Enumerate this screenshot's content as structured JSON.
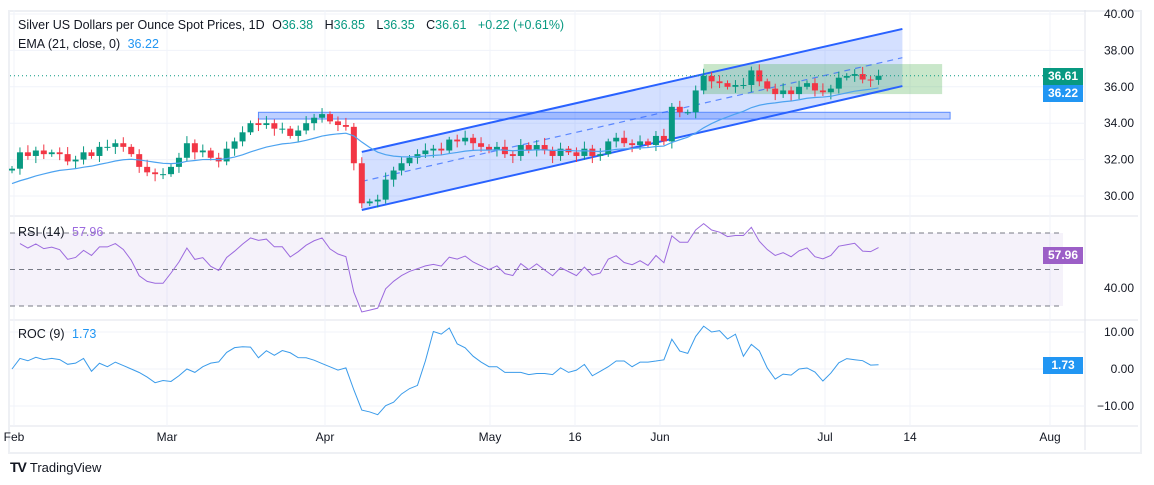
{
  "header": {
    "title": "Silver US Dollars per Ounce Spot Prices, 1D",
    "open_label": "O",
    "open": "36.38",
    "high_label": "H",
    "high": "36.85",
    "low_label": "L",
    "low": "36.35",
    "close_label": "C",
    "close": "36.61",
    "change": "+0.22 (+0.61%)"
  },
  "ema_legend": {
    "label": "EMA (21, close, 0)",
    "value": "36.22"
  },
  "rsi_legend": {
    "label": "RSI (14)",
    "value": "57.96"
  },
  "roc_legend": {
    "label": "ROC (9)",
    "value": "1.73"
  },
  "tags": {
    "price": "36.61",
    "ema": "36.22",
    "rsi": "57.96",
    "roc": "1.73"
  },
  "branding": {
    "name": "TradingView"
  },
  "colors": {
    "up": "#089981",
    "down": "#F23645",
    "ema": "#4DA3F0",
    "rsi": "#9C6ADE",
    "roc": "#3A9BEA",
    "channel": "#2962FF"
  },
  "chart_data": {
    "type": "candlestick",
    "title": "Silver US Dollars per Ounce Spot Prices, 1D",
    "price_axis": {
      "ticks": [
        "40.00",
        "38.00",
        "36.00",
        "34.00",
        "32.00",
        "30.00"
      ],
      "range": [
        29,
        40
      ]
    },
    "rsi_axis": {
      "ticks": [
        "40.00"
      ],
      "levels": [
        70,
        50,
        30
      ]
    },
    "roc_axis": {
      "ticks": [
        "10.00",
        "0.00",
        "-10.00"
      ],
      "range": [
        -12,
        12
      ]
    },
    "time_labels": [
      "Feb",
      "Mar",
      "Apr",
      "May",
      "16",
      "Jun",
      "Jul",
      "14",
      "Aug"
    ],
    "closes": [
      31.5,
      32.4,
      32.2,
      32.5,
      32.3,
      32.4,
      32.3,
      31.9,
      32.0,
      32.4,
      32.2,
      32.7,
      32.7,
      32.9,
      32.7,
      32.3,
      31.6,
      31.3,
      31.2,
      31.2,
      31.6,
      32.1,
      32.9,
      32.4,
      32.5,
      32.1,
      31.9,
      32.6,
      33.0,
      33.5,
      34.0,
      33.9,
      34.0,
      33.7,
      33.7,
      33.3,
      33.6,
      34.0,
      34.3,
      34.5,
      34.1,
      33.9,
      33.8,
      31.8,
      29.6,
      29.7,
      29.8,
      30.9,
      31.4,
      31.8,
      32.1,
      32.3,
      32.5,
      32.6,
      32.5,
      33.1,
      33.0,
      33.2,
      32.9,
      32.7,
      32.5,
      32.7,
      32.3,
      32.2,
      32.8,
      32.5,
      32.8,
      32.5,
      32.2,
      32.6,
      32.4,
      32.2,
      32.6,
      32.2,
      32.3,
      33.0,
      33.2,
      32.9,
      32.8,
      33.0,
      32.8,
      33.3,
      33.0,
      34.9,
      34.6,
      34.6,
      35.8,
      36.6,
      36.3,
      36.2,
      36.0,
      36.1,
      36.1,
      36.9,
      36.3,
      35.9,
      35.6,
      35.8,
      35.6,
      36.0,
      36.2,
      35.8,
      35.7,
      35.9,
      36.5,
      36.6,
      36.7,
      36.4,
      36.38,
      36.61
    ],
    "ema_period": 21,
    "ema_seed": 30.6,
    "rsi_period": 14,
    "roc_period": 9,
    "channel": {
      "upper": [
        [
          44,
          32.42
        ],
        [
          112,
          39.18
        ]
      ],
      "middle": [
        [
          44,
          30.8
        ],
        [
          112,
          37.6
        ]
      ],
      "lower": [
        [
          44,
          29.23
        ],
        [
          112,
          36.04
        ]
      ]
    },
    "resistance_zone": {
      "bars": [
        31,
        118
      ],
      "prices": [
        34.23,
        34.6
      ]
    },
    "consolidation_box": {
      "bars": [
        87,
        117
      ],
      "prices": [
        35.6,
        37.25
      ]
    }
  }
}
